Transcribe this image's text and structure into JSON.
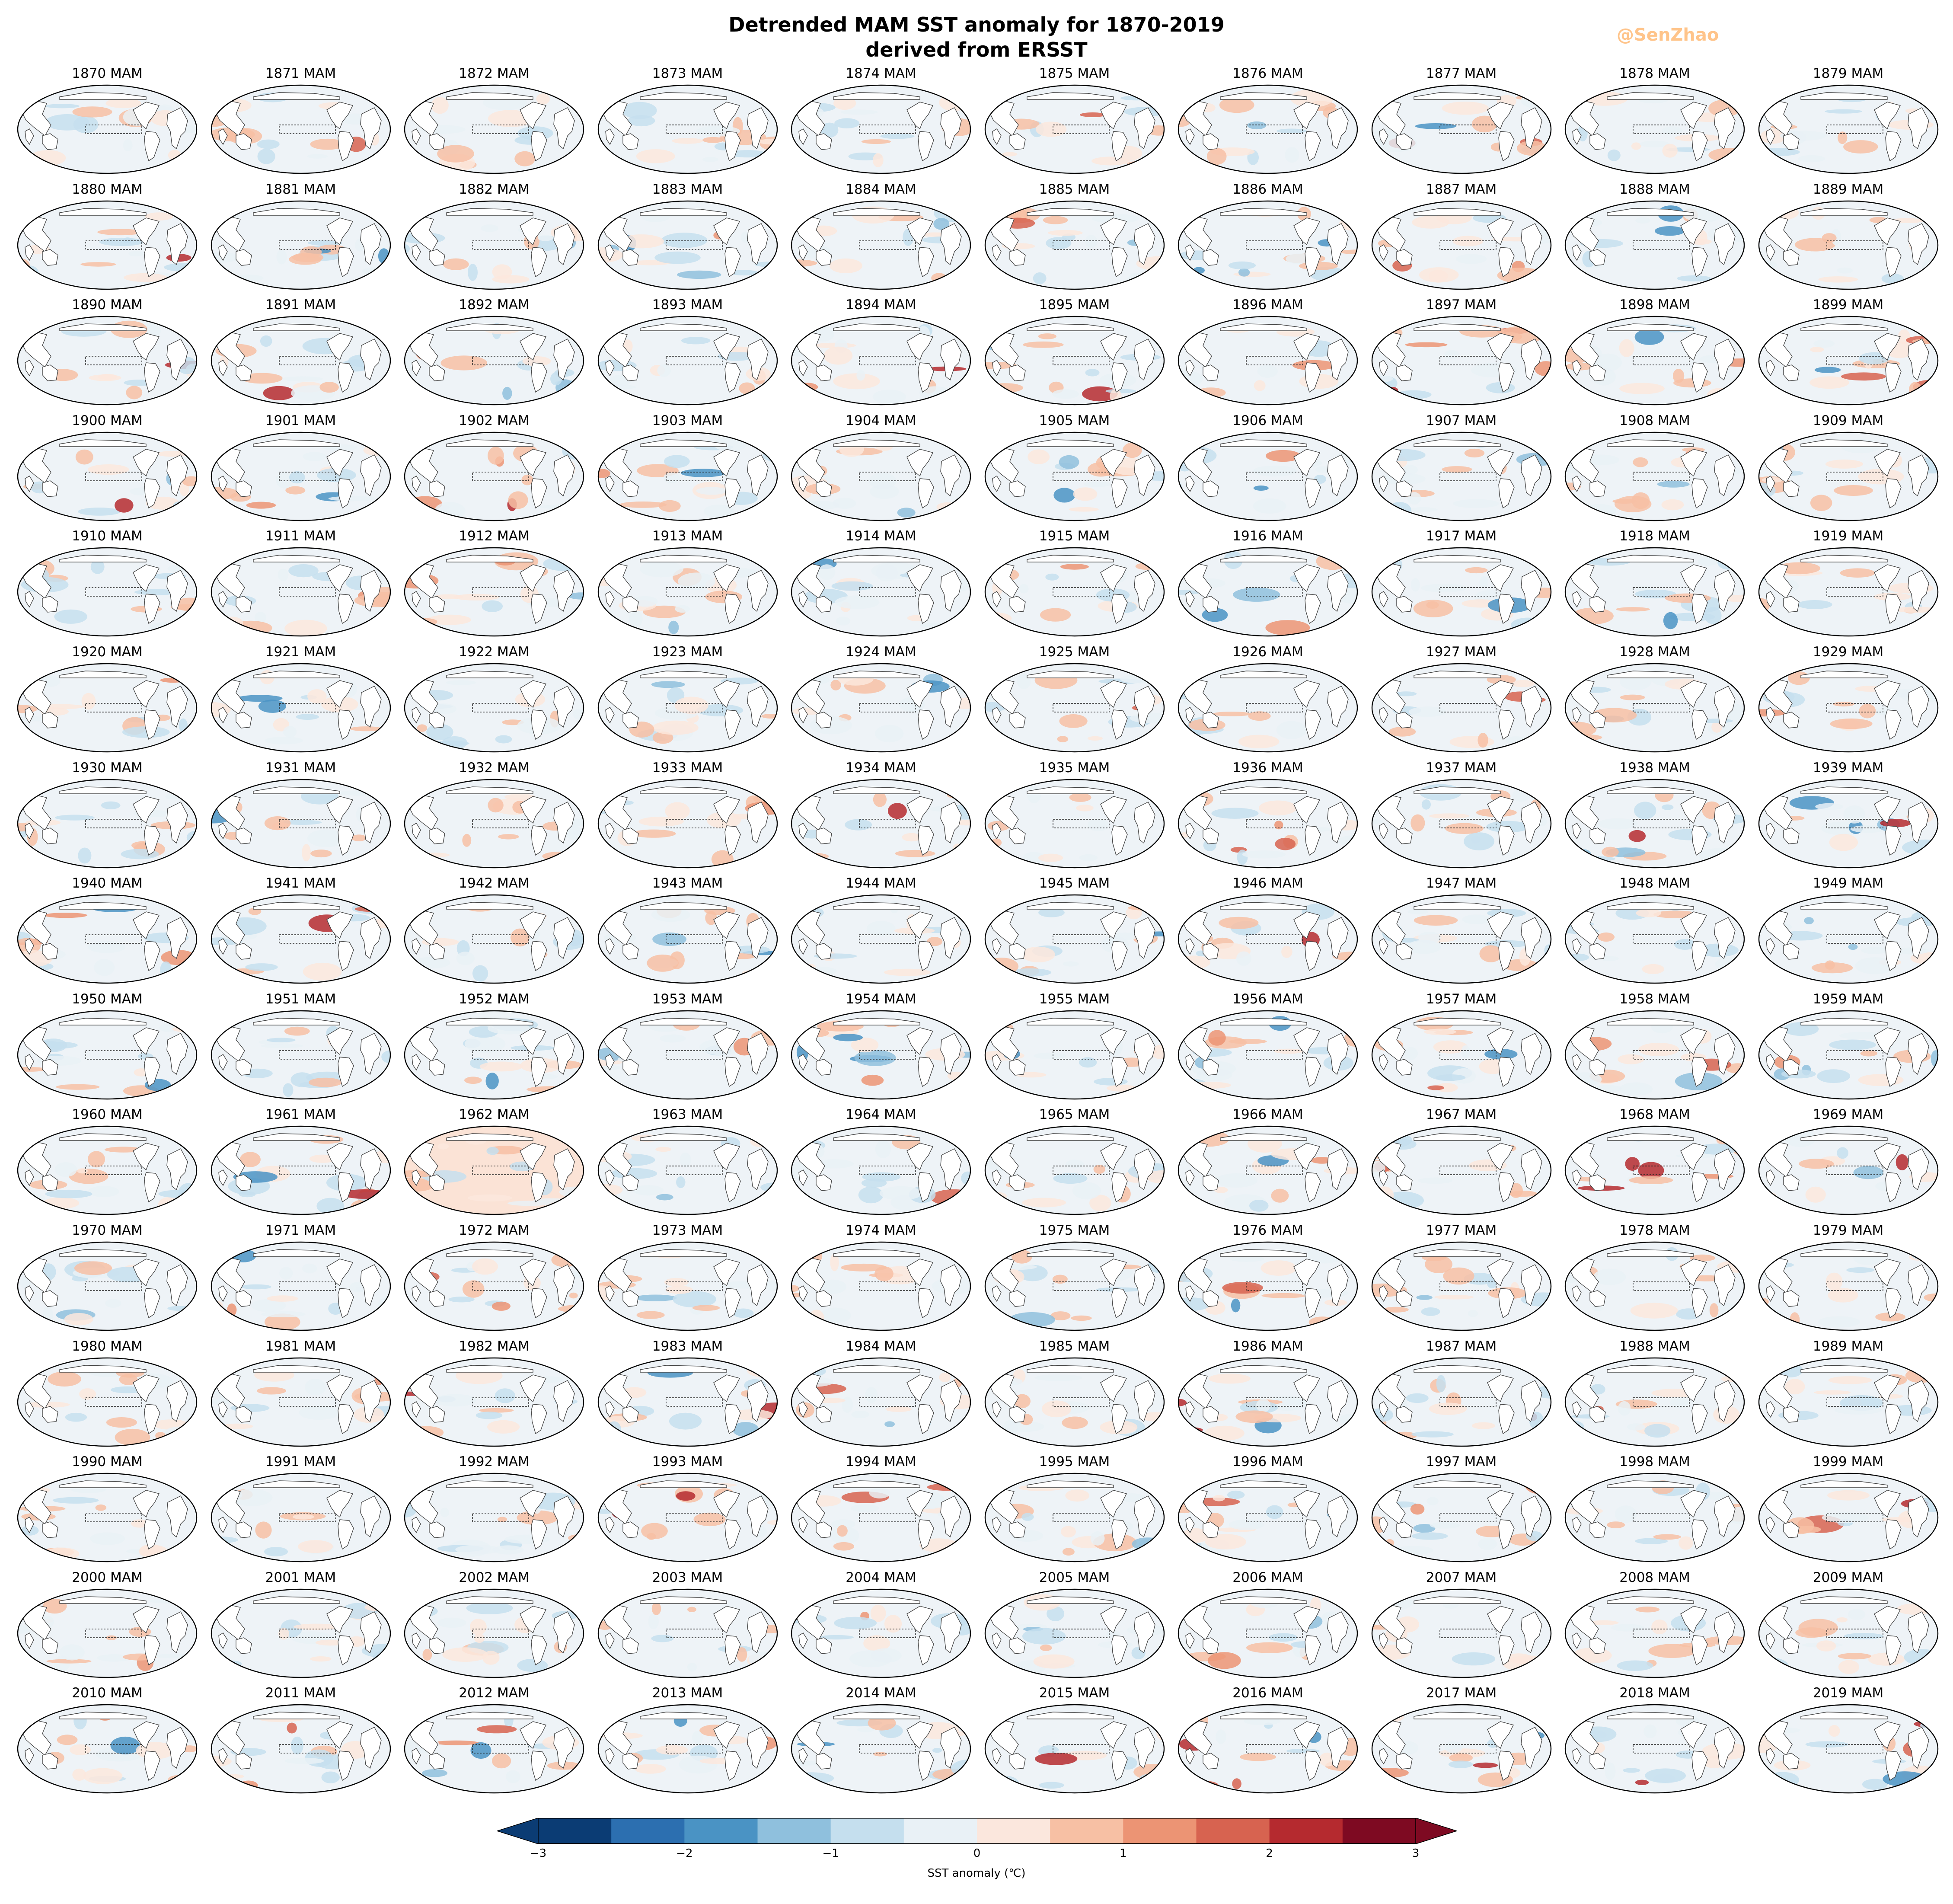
{
  "figure": {
    "title_line1": "Detrended MAM SST anomaly for 1870-2019",
    "title_line2": "derived from ERSST",
    "watermark": "@SenZhao"
  },
  "panels": {
    "years": [
      1870,
      1871,
      1872,
      1873,
      1874,
      1875,
      1876,
      1877,
      1878,
      1879,
      1880,
      1881,
      1882,
      1883,
      1884,
      1885,
      1886,
      1887,
      1888,
      1889,
      1890,
      1891,
      1892,
      1893,
      1894,
      1895,
      1896,
      1897,
      1898,
      1899,
      1900,
      1901,
      1902,
      1903,
      1904,
      1905,
      1906,
      1907,
      1908,
      1909,
      1910,
      1911,
      1912,
      1913,
      1914,
      1915,
      1916,
      1917,
      1918,
      1919,
      1920,
      1921,
      1922,
      1923,
      1924,
      1925,
      1926,
      1927,
      1928,
      1929,
      1930,
      1931,
      1932,
      1933,
      1934,
      1935,
      1936,
      1937,
      1938,
      1939,
      1940,
      1941,
      1942,
      1943,
      1944,
      1945,
      1946,
      1947,
      1948,
      1949,
      1950,
      1951,
      1952,
      1953,
      1954,
      1955,
      1956,
      1957,
      1958,
      1959,
      1960,
      1961,
      1962,
      1963,
      1964,
      1965,
      1966,
      1967,
      1968,
      1969,
      1970,
      1971,
      1972,
      1973,
      1974,
      1975,
      1976,
      1977,
      1978,
      1979,
      1980,
      1981,
      1982,
      1983,
      1984,
      1985,
      1986,
      1987,
      1988,
      1989,
      1990,
      1991,
      1992,
      1993,
      1994,
      1995,
      1996,
      1997,
      1998,
      1999,
      2000,
      2001,
      2002,
      2003,
      2004,
      2005,
      2006,
      2007,
      2008,
      2009,
      2010,
      2011,
      2012,
      2013,
      2014,
      2015,
      2016,
      2017,
      2018,
      2019
    ],
    "season": "MAM",
    "columns": 10,
    "rows": 15
  },
  "colorbar": {
    "label": "SST anomaly (℃)",
    "ticks": [
      "−3",
      "−2",
      "−1",
      "0",
      "1",
      "2",
      "3"
    ],
    "min": -3,
    "max": 3,
    "levels": [
      -3,
      -2.5,
      -2,
      -1.5,
      -1,
      -0.5,
      0,
      0.5,
      1,
      1.5,
      2,
      2.5,
      3
    ],
    "colors": [
      "#0b3c74",
      "#2c6fb0",
      "#4a93c4",
      "#8fc0dd",
      "#c5dfee",
      "#e9f1f6",
      "#fbe7dd",
      "#f7c0a4",
      "#ec9474",
      "#d76350",
      "#b52a2f",
      "#7e0a22"
    ],
    "extend_below_color": "#0b3c74",
    "extend_above_color": "#7e0a22"
  }
}
